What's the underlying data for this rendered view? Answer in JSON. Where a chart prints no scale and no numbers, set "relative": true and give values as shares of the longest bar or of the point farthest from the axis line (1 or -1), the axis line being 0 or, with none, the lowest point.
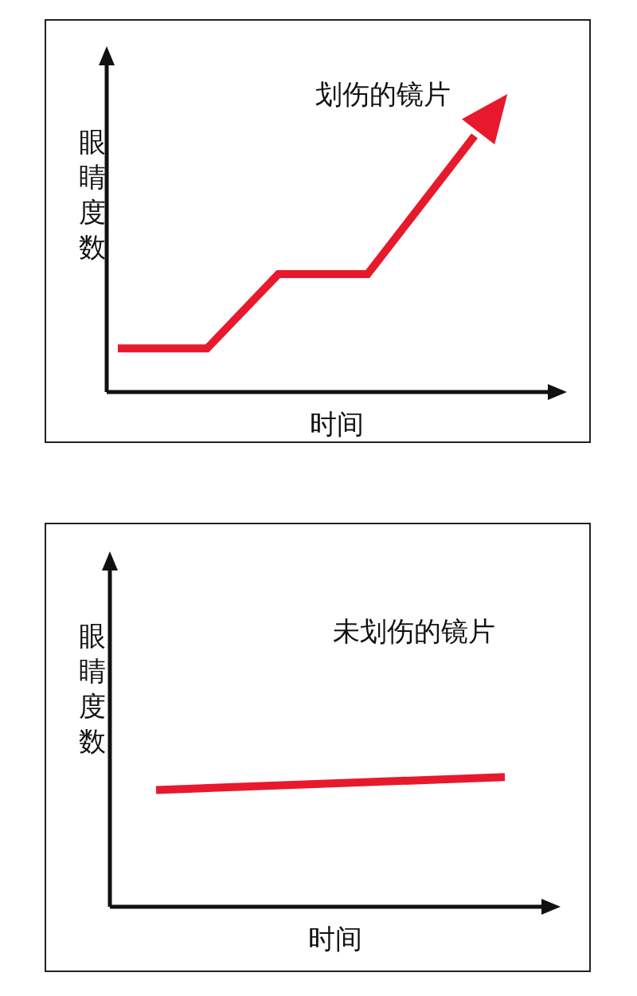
{
  "chart_data": [
    {
      "type": "line",
      "relative": true,
      "xlabel": "时间",
      "ylabel": "眼睛度数",
      "annotations": [
        "划伤的镜片"
      ],
      "marker": "none",
      "color": "#e8192c",
      "categories": [
        null,
        null,
        null,
        null,
        null,
        null,
        null,
        null,
        null,
        null,
        null,
        null,
        null,
        null,
        null,
        null,
        null,
        null,
        null,
        null,
        null
      ],
      "values": [
        0.17,
        null,
        null,
        null,
        null,
        0.17,
        null,
        null,
        null,
        0.46,
        null,
        null,
        null,
        null,
        0.46,
        null,
        null,
        null,
        null,
        null,
        1
      ]
    },
    {
      "type": "line",
      "relative": true,
      "xlabel": "时间",
      "ylabel": "眼睛度数",
      "annotations": [
        "未划伤的镜片"
      ],
      "marker": "none",
      "color": "#e8192c",
      "categories": [
        null,
        null
      ],
      "values": [
        0.9,
        1
      ]
    }
  ]
}
